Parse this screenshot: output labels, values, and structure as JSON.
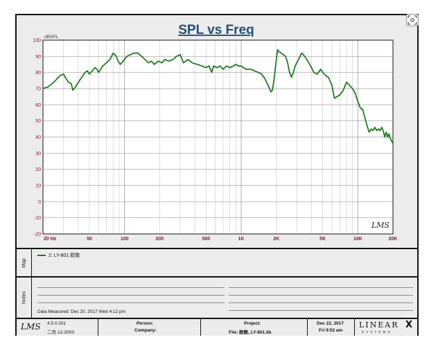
{
  "chart_data": {
    "type": "line",
    "title": "SPL vs Freq",
    "ylabel": "dBSPL",
    "xlabel": "",
    "xscale": "log",
    "xlim": [
      20,
      20000
    ],
    "ylim": [
      -20,
      100
    ],
    "grid": true,
    "y_ticks": [
      100,
      90,
      80,
      70,
      60,
      50,
      40,
      30,
      20,
      10,
      0,
      -10,
      -20
    ],
    "x_ticks": [
      {
        "label": "20 Hz",
        "value": 20
      },
      {
        "label": "50",
        "value": 50
      },
      {
        "label": "100",
        "value": 100
      },
      {
        "label": "200",
        "value": 200
      },
      {
        "label": "500",
        "value": 500
      },
      {
        "label": "1K",
        "value": 1000
      },
      {
        "label": "2K",
        "value": 2000
      },
      {
        "label": "5K",
        "value": 5000
      },
      {
        "label": "10K",
        "value": 10000
      },
      {
        "label": "20K",
        "value": 20000
      }
    ],
    "series": [
      {
        "name": "2: LY-801 欧歌",
        "color": "#1e7a1e",
        "points": [
          [
            20,
            70
          ],
          [
            22,
            71
          ],
          [
            24,
            73
          ],
          [
            26,
            75.5
          ],
          [
            28,
            78
          ],
          [
            30,
            79
          ],
          [
            31,
            77
          ],
          [
            33,
            74
          ],
          [
            35,
            73
          ],
          [
            36,
            69
          ],
          [
            38,
            71
          ],
          [
            42,
            76
          ],
          [
            46,
            80
          ],
          [
            48,
            81
          ],
          [
            50,
            79
          ],
          [
            53,
            81
          ],
          [
            56,
            83
          ],
          [
            58,
            82
          ],
          [
            60,
            80
          ],
          [
            65,
            84
          ],
          [
            70,
            86
          ],
          [
            75,
            88
          ],
          [
            80,
            92
          ],
          [
            85,
            90
          ],
          [
            88,
            87
          ],
          [
            92,
            85
          ],
          [
            100,
            88
          ],
          [
            105,
            90
          ],
          [
            112,
            91
          ],
          [
            120,
            92
          ],
          [
            130,
            92
          ],
          [
            140,
            90
          ],
          [
            150,
            88
          ],
          [
            160,
            86
          ],
          [
            170,
            87
          ],
          [
            180,
            85
          ],
          [
            195,
            87
          ],
          [
            210,
            86
          ],
          [
            220,
            88
          ],
          [
            240,
            87
          ],
          [
            260,
            88
          ],
          [
            280,
            90
          ],
          [
            300,
            91
          ],
          [
            320,
            86
          ],
          [
            350,
            88
          ],
          [
            380,
            86
          ],
          [
            420,
            85
          ],
          [
            460,
            84
          ],
          [
            500,
            83
          ],
          [
            530,
            84
          ],
          [
            560,
            80
          ],
          [
            580,
            84
          ],
          [
            620,
            83
          ],
          [
            660,
            84
          ],
          [
            700,
            82
          ],
          [
            750,
            84
          ],
          [
            800,
            83
          ],
          [
            860,
            84
          ],
          [
            900,
            85
          ],
          [
            950,
            84
          ],
          [
            1000,
            84
          ],
          [
            1100,
            82
          ],
          [
            1200,
            82
          ],
          [
            1300,
            81
          ],
          [
            1400,
            80
          ],
          [
            1500,
            79
          ],
          [
            1600,
            76
          ],
          [
            1700,
            72
          ],
          [
            1800,
            68
          ],
          [
            1850,
            69
          ],
          [
            1900,
            74
          ],
          [
            2000,
            88
          ],
          [
            2050,
            94
          ],
          [
            2100,
            93
          ],
          [
            2200,
            92
          ],
          [
            2300,
            91
          ],
          [
            2400,
            90
          ],
          [
            2500,
            86
          ],
          [
            2600,
            80
          ],
          [
            2700,
            77
          ],
          [
            2800,
            80
          ],
          [
            2900,
            84
          ],
          [
            3100,
            88
          ],
          [
            3300,
            92
          ],
          [
            3500,
            90
          ],
          [
            3800,
            86
          ],
          [
            4000,
            83
          ],
          [
            4200,
            80
          ],
          [
            4500,
            79
          ],
          [
            4800,
            82
          ],
          [
            5000,
            80
          ],
          [
            5300,
            78
          ],
          [
            5600,
            77
          ],
          [
            6000,
            72
          ],
          [
            6300,
            64
          ],
          [
            6600,
            65
          ],
          [
            7000,
            66
          ],
          [
            7500,
            69
          ],
          [
            8000,
            74
          ],
          [
            8500,
            72
          ],
          [
            9000,
            70
          ],
          [
            9500,
            67
          ],
          [
            10000,
            62
          ],
          [
            10500,
            58
          ],
          [
            11000,
            57
          ],
          [
            11500,
            52
          ],
          [
            12000,
            47
          ],
          [
            12500,
            43
          ],
          [
            13000,
            45
          ],
          [
            13500,
            44
          ],
          [
            14000,
            46
          ],
          [
            14500,
            44
          ],
          [
            15000,
            45
          ],
          [
            15500,
            44
          ],
          [
            16000,
            46
          ],
          [
            16500,
            44
          ],
          [
            17000,
            40
          ],
          [
            17500,
            43
          ],
          [
            18000,
            40
          ],
          [
            18500,
            42
          ],
          [
            19000,
            39
          ],
          [
            20000,
            36
          ]
        ]
      }
    ]
  },
  "chart": {
    "logo": "LMS",
    "zoom_icon": "zoom-fit-icon"
  },
  "map": {
    "label": "Map",
    "legend_text": "2: LY-801  欧歌",
    "legend_color": "#1e7a1e"
  },
  "notes": {
    "label": "Notes",
    "measured_text": "Data Measured: Dec 20, 2017   Wed   4:12 pm"
  },
  "footer": {
    "logo": "LMS",
    "version": "4.5.0.331",
    "version_date": "二月-12-2003",
    "person_label": "Person:",
    "company_label": "Company:",
    "project_label": "Project:",
    "file_label": "File: 欧歌, LY-801.lib",
    "date": "Dec 22, 2017",
    "time": "Fri  9:52 am",
    "brand_top": "LINEAR",
    "brand_x": "X",
    "brand_bottom": "S Y S T E M S"
  }
}
